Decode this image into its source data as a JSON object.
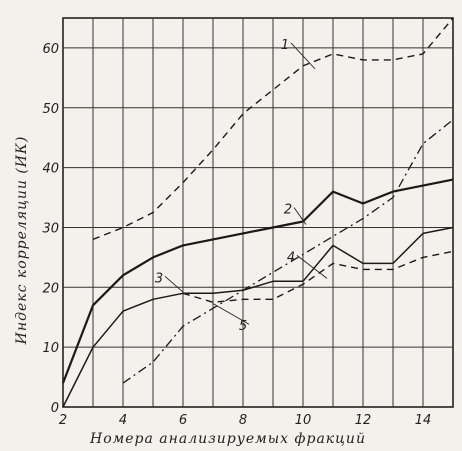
{
  "chart_data": {
    "type": "line",
    "title": "",
    "xlabel": "Номера анализируемых фракций",
    "ylabel": "Индекс корреляции (ИК)",
    "xlim": [
      2,
      15
    ],
    "ylim": [
      0,
      65
    ],
    "xticks": [
      "2",
      "4",
      "6",
      "8",
      "10",
      "12",
      "14"
    ],
    "yticks": [
      "0",
      "10",
      "20",
      "30",
      "40",
      "50",
      "60"
    ],
    "grid": true,
    "series": [
      {
        "name": "1",
        "style": "dashed",
        "x": [
          3,
          4,
          5,
          6,
          7,
          8,
          9,
          10,
          11,
          12,
          13,
          14,
          15
        ],
        "y": [
          28,
          30,
          32.5,
          37.5,
          43,
          49,
          53,
          57,
          59,
          58,
          58,
          59,
          65
        ]
      },
      {
        "name": "2",
        "style": "solid-bold",
        "x": [
          2,
          3,
          4,
          5,
          6,
          7,
          8,
          9,
          10,
          11,
          12,
          13,
          14,
          15
        ],
        "y": [
          4,
          17,
          22,
          25,
          27,
          28,
          29,
          30,
          31,
          36,
          34,
          36,
          37,
          38
        ]
      },
      {
        "name": "3",
        "style": "solid",
        "x": [
          2,
          3,
          4,
          5,
          6,
          7,
          8,
          9,
          10,
          11,
          12,
          13,
          14,
          15
        ],
        "y": [
          0,
          10,
          16,
          18,
          19,
          19,
          19.5,
          21,
          21,
          27,
          24,
          24,
          29,
          30
        ]
      },
      {
        "name": "4",
        "style": "dash-dot",
        "x": [
          4,
          5,
          6,
          7,
          8,
          9,
          10,
          11,
          12,
          13,
          14,
          15
        ],
        "y": [
          4,
          7.5,
          13.5,
          16.5,
          19.5,
          22.5,
          25.5,
          28.5,
          31.5,
          35,
          44,
          48
        ]
      },
      {
        "name": "5",
        "style": "dashed",
        "x": [
          6,
          7,
          8,
          9,
          10,
          11,
          12,
          13,
          14,
          15
        ],
        "y": [
          19,
          17.5,
          18,
          18,
          20.5,
          24,
          23,
          23,
          25,
          26
        ]
      }
    ]
  }
}
